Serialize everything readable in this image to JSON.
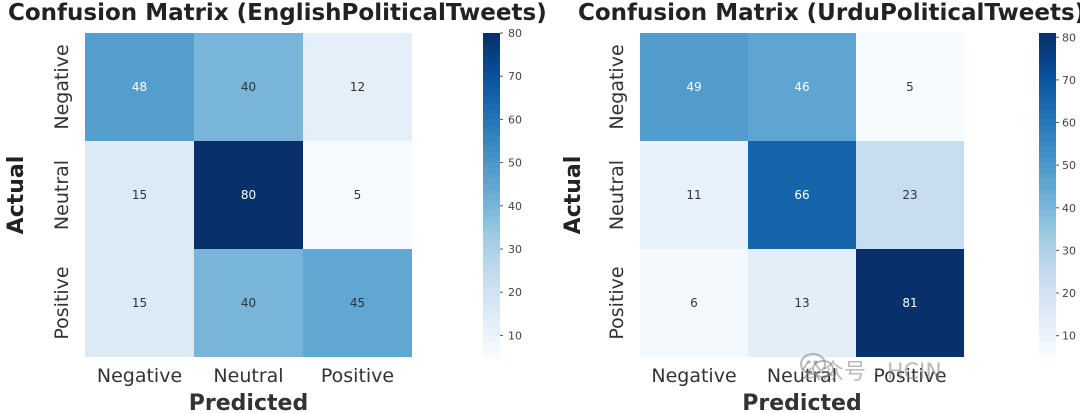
{
  "chart_data": [
    {
      "type": "heatmap",
      "title": "Confusion Matrix (EnglishPoliticalTweets)",
      "xlabel": "Predicted",
      "ylabel": "Actual",
      "x_categories": [
        "Negative",
        "Neutral",
        "Positive"
      ],
      "y_categories": [
        "Negative",
        "Neutral",
        "Positive"
      ],
      "values": [
        [
          48,
          40,
          12
        ],
        [
          15,
          80,
          5
        ],
        [
          15,
          40,
          45
        ]
      ],
      "colormap": "Blues",
      "vmin": 5,
      "vmax": 80,
      "colorbar_ticks": [
        10,
        20,
        30,
        40,
        50,
        60,
        70,
        80
      ]
    },
    {
      "type": "heatmap",
      "title": "Confusion Matrix (UrduPoliticalTweets)",
      "xlabel": "Predicted",
      "ylabel": "Actual",
      "x_categories": [
        "Negative",
        "Neutral",
        "Positive"
      ],
      "y_categories": [
        "Negative",
        "Neutral",
        "Positive"
      ],
      "values": [
        [
          49,
          46,
          5
        ],
        [
          11,
          66,
          23
        ],
        [
          6,
          13,
          81
        ]
      ],
      "colormap": "Blues",
      "vmin": 5,
      "vmax": 81,
      "colorbar_ticks": [
        10,
        20,
        30,
        40,
        50,
        60,
        70,
        80
      ]
    }
  ],
  "watermark": {
    "text": "公众号 · HCIN",
    "icon": "wechat-icon"
  }
}
